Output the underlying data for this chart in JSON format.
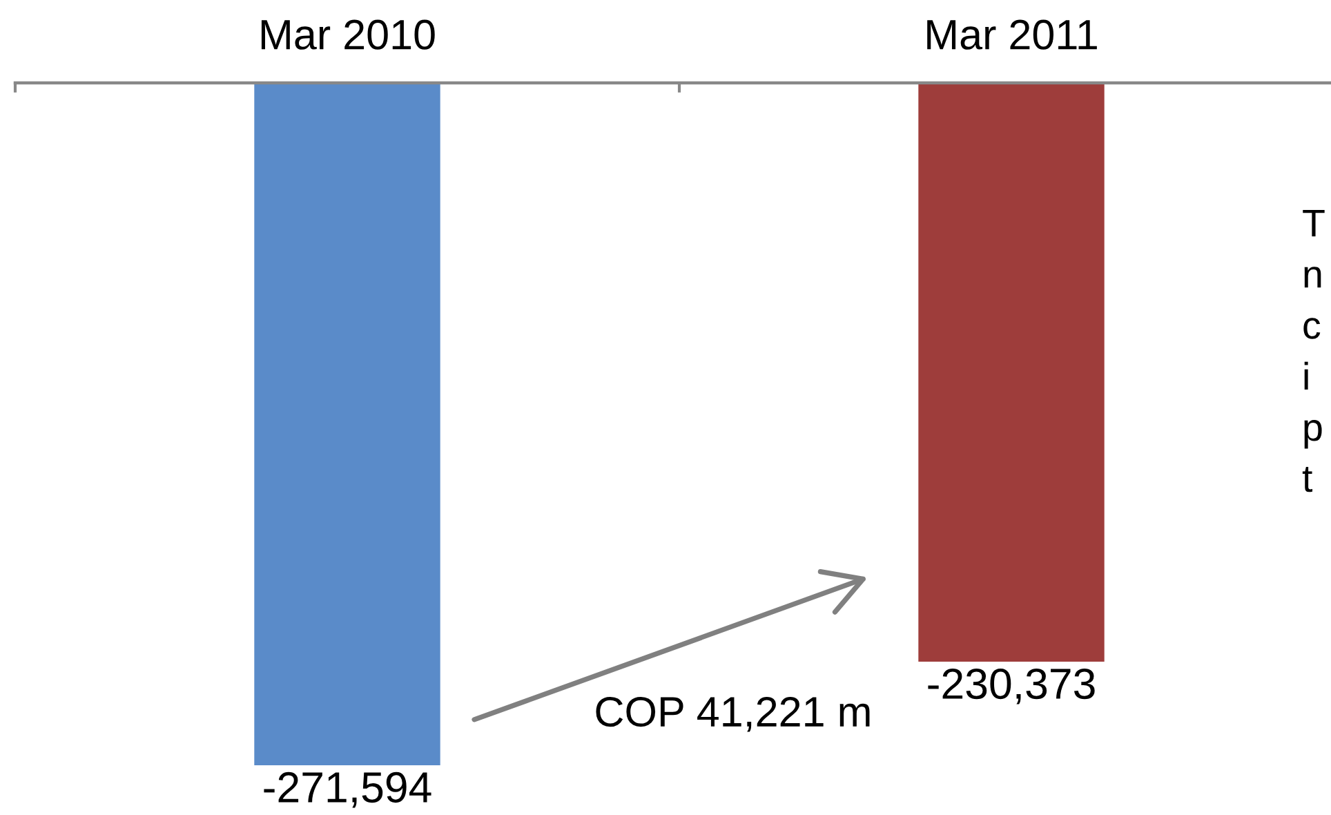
{
  "chart_data": {
    "type": "bar",
    "categories": [
      "Mar 2010",
      "Mar 2011"
    ],
    "values": [
      -271594,
      -230373
    ],
    "value_labels": [
      "-271,594",
      "-230,373"
    ],
    "colors": [
      "#5a8bc9",
      "#9e3d3b"
    ],
    "tick_labels": "x",
    "annotations": [
      "COP 41,221 m",
      "T\nn\nc\ni\np\nt"
    ]
  }
}
